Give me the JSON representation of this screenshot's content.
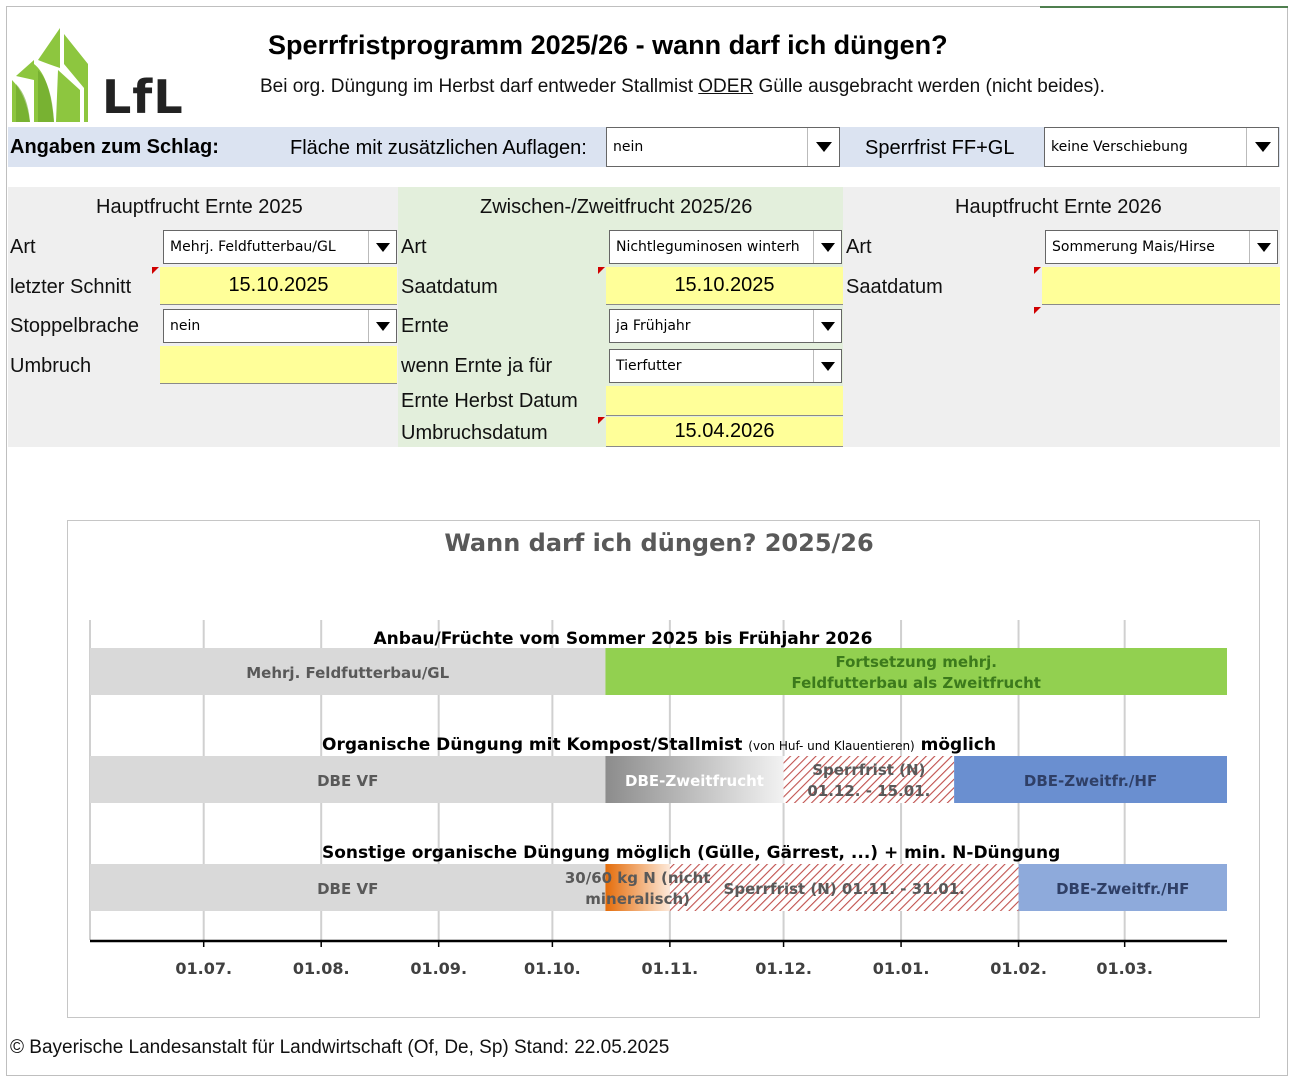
{
  "header": {
    "logo_text": "LfL",
    "title": "Sperrfristprogramm 2025/26 - wann darf ich düngen?",
    "subtitle_pre": "Bei org. Düngung im Herbst darf entweder Stallmist ",
    "subtitle_em": "ODER",
    "subtitle_post": " Gülle ausgebracht werden (nicht beides)."
  },
  "schlag": {
    "label": "Angaben zum Schlag:",
    "auflagen_label": "Fläche mit zusätzlichen Auflagen:",
    "auflagen_value": "nein",
    "sperrfrist_label": "Sperrfrist FF+GL",
    "sperrfrist_value": "keine Verschiebung"
  },
  "hauptfrucht_2025": {
    "header": "Hauptfrucht Ernte 2025",
    "art_label": "Art",
    "art_value": "Mehrj. Feldfutterbau/GL",
    "schnitt_label": "letzter Schnitt",
    "schnitt_value": "15.10.2025",
    "stoppel_label": "Stoppelbrache",
    "stoppel_value": "nein",
    "umbruch_label": "Umbruch",
    "umbruch_value": ""
  },
  "zwischenfrucht": {
    "header": "Zwischen-/Zweitfrucht 2025/26",
    "art_label": "Art",
    "art_value": "Nichtleguminosen winterh",
    "saat_label": "Saatdatum",
    "saat_value": "15.10.2025",
    "ernte_label": "Ernte",
    "ernte_value": "ja Frühjahr",
    "wenn_label": "wenn Ernte ja für",
    "wenn_value": "Tierfutter",
    "herbst_label": "Ernte Herbst Datum",
    "herbst_value": "",
    "umbruch_label": "Umbruchsdatum",
    "umbruch_value": "15.04.2026"
  },
  "hauptfrucht_2026": {
    "header": "Hauptfrucht Ernte 2026",
    "art_label": "Art",
    "art_value": "Sommerung Mais/Hirse",
    "saat_label": "Saatdatum",
    "saat_value": ""
  },
  "colors": {
    "gray_bar": "#d9d9d9",
    "green_bar": "#92d050",
    "green_text": "#3c7a1c",
    "blue_bar": "#6a8fd0",
    "blue_bar_light": "#8eaadb",
    "hatch_red": "#c0504d",
    "orange": "#e46c0a",
    "axis_text": "#404040"
  },
  "chart_data": {
    "type": "gantt",
    "title": "Wann darf ich düngen? 2025/26",
    "x_ticks": [
      "01.07.",
      "01.08.",
      "01.09.",
      "01.10.",
      "01.11.",
      "01.12.",
      "01.01.",
      "01.02.",
      "01.03."
    ],
    "x_range": [
      "2025-06-01",
      "2026-03-28"
    ],
    "rows": [
      {
        "title": "Anbau/Früchte vom Sommer 2025 bis Frühjahr 2026",
        "title_note": "",
        "title_post": "",
        "segments": [
          {
            "label": "Mehrj. Feldfutterbau/GL",
            "start": "2025-06-01",
            "end": "2025-10-15",
            "style": "gray"
          },
          {
            "label": "Fortsetzung mehrj.",
            "label2": "Feldfutterbau als Zweitfrucht",
            "start": "2025-10-15",
            "end": "2026-03-28",
            "style": "green"
          }
        ]
      },
      {
        "title": "Organische Düngung mit Kompost/Stallmist ",
        "title_note": "(von Huf- und Klauentieren)",
        "title_post": " möglich",
        "segments": [
          {
            "label": "DBE VF",
            "start": "2025-06-01",
            "end": "2025-10-15",
            "style": "gray"
          },
          {
            "label": "DBE-Zweitfrucht",
            "start": "2025-10-15",
            "end": "2025-12-01",
            "style": "gray-gradient"
          },
          {
            "label": "Sperrfrist (N)",
            "label2": "01.12. - 15.01.",
            "start": "2025-12-01",
            "end": "2026-01-15",
            "style": "hatch"
          },
          {
            "label": "DBE-Zweitfr./HF",
            "start": "2026-01-15",
            "end": "2026-03-28",
            "style": "blue"
          }
        ]
      },
      {
        "title": "Sonstige organische Düngung möglich (Gülle, Gärrest, ...) + min. N-Düngung",
        "title_note": "",
        "title_post": "",
        "segments": [
          {
            "label": "DBE VF",
            "start": "2025-06-01",
            "end": "2025-10-15",
            "style": "gray"
          },
          {
            "label": "30/60 kg N (nicht",
            "label2": "mineralisch)",
            "start": "2025-10-15",
            "end": "2025-11-01",
            "style": "orange"
          },
          {
            "label": "Sperrfrist (N) 01.11. - 31.01.",
            "start": "2025-11-01",
            "end": "2026-02-01",
            "style": "hatch"
          },
          {
            "label": "DBE-Zweitfr./HF",
            "start": "2026-02-01",
            "end": "2026-03-28",
            "style": "blue-light"
          }
        ]
      }
    ]
  },
  "footer": "© Bayerische Landesanstalt für Landwirtschaft (Of, De, Sp) Stand: 22.05.2025"
}
